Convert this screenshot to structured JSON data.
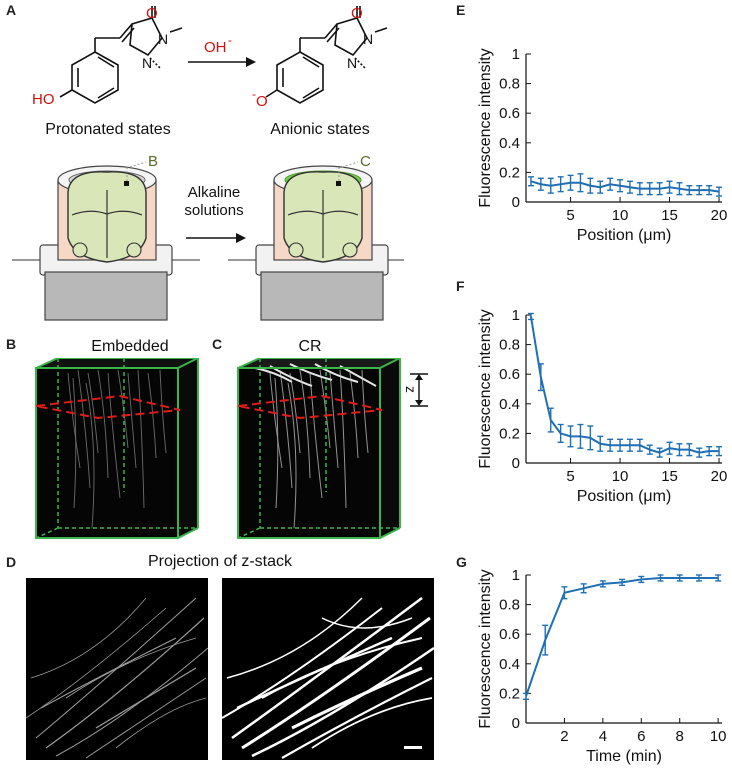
{
  "panels": {
    "A": "A",
    "B": "B",
    "C": "C",
    "D": "D",
    "E": "E",
    "F": "F",
    "G": "G"
  },
  "panel_a": {
    "oh_label": "OH",
    "oh_minus": "-",
    "ho_label": "HO",
    "o_minus_label": "O",
    "o_minus_sign": "-",
    "o_label": "O",
    "n_label": "N",
    "protonated": "Protonated states",
    "anionic": "Anionic states",
    "marker_b": "B",
    "marker_c": "C",
    "alkaline_line1": "Alkaline",
    "alkaline_line2": "solutions"
  },
  "panel_b": {
    "title": "Embedded"
  },
  "panel_c": {
    "title": "CR",
    "z_label": "z"
  },
  "panel_d": {
    "title": "Projection of z-stack"
  },
  "chart_data": [
    {
      "id": "E",
      "type": "line",
      "xlabel": "Position (μm)",
      "ylabel": "Fluorescence intensity",
      "xlim": [
        0.5,
        20.3
      ],
      "ylim": [
        0,
        1
      ],
      "xticks": [
        5,
        10,
        15,
        20
      ],
      "yticks": [
        0,
        0.2,
        0.4,
        0.6,
        0.8,
        1
      ],
      "ytick_labels": [
        "0",
        "0.2",
        "0.4",
        "0.6",
        "0.8",
        "1"
      ],
      "color": "#1f6fb5",
      "x": [
        1,
        2,
        3,
        4,
        5,
        6,
        7,
        8,
        9,
        10,
        11,
        12,
        13,
        14,
        15,
        16,
        17,
        18,
        19,
        20
      ],
      "y": [
        0.14,
        0.12,
        0.11,
        0.12,
        0.13,
        0.13,
        0.11,
        0.1,
        0.12,
        0.11,
        0.1,
        0.09,
        0.09,
        0.09,
        0.1,
        0.09,
        0.08,
        0.08,
        0.08,
        0.07
      ],
      "err": [
        0.03,
        0.04,
        0.05,
        0.05,
        0.05,
        0.06,
        0.05,
        0.04,
        0.04,
        0.04,
        0.04,
        0.04,
        0.04,
        0.04,
        0.04,
        0.04,
        0.03,
        0.03,
        0.03,
        0.03
      ]
    },
    {
      "id": "F",
      "type": "line",
      "xlabel": "Position (μm)",
      "ylabel": "Fluorescence intensity",
      "xlim": [
        0.5,
        20.3
      ],
      "ylim": [
        0,
        1
      ],
      "xticks": [
        5,
        10,
        15,
        20
      ],
      "yticks": [
        0,
        0.2,
        0.4,
        0.6,
        0.8,
        1
      ],
      "ytick_labels": [
        "0",
        "0.2",
        "0.4",
        "0.6",
        "0.8",
        "1"
      ],
      "color": "#1f6fb5",
      "x": [
        1,
        2,
        3,
        4,
        5,
        6,
        7,
        8,
        9,
        10,
        11,
        12,
        13,
        14,
        15,
        16,
        17,
        18,
        19,
        20
      ],
      "y": [
        0.99,
        0.58,
        0.29,
        0.2,
        0.18,
        0.18,
        0.17,
        0.13,
        0.12,
        0.12,
        0.12,
        0.12,
        0.09,
        0.07,
        0.1,
        0.09,
        0.09,
        0.07,
        0.08,
        0.08
      ],
      "err": [
        0.02,
        0.09,
        0.08,
        0.06,
        0.07,
        0.08,
        0.08,
        0.05,
        0.04,
        0.04,
        0.04,
        0.04,
        0.03,
        0.03,
        0.04,
        0.04,
        0.04,
        0.03,
        0.03,
        0.03
      ]
    },
    {
      "id": "G",
      "type": "line",
      "xlabel": "Time (min)",
      "ylabel": "Fluorescence intensity",
      "xlim": [
        0,
        10.2
      ],
      "ylim": [
        0,
        1
      ],
      "xticks": [
        2,
        4,
        6,
        8,
        10
      ],
      "yticks": [
        0,
        0.2,
        0.4,
        0.6,
        0.8,
        1
      ],
      "ytick_labels": [
        "0",
        "0.2",
        "0.4",
        "0.6",
        "0.8",
        "1"
      ],
      "color": "#1f6fb5",
      "x": [
        0,
        1,
        2,
        3,
        4,
        5,
        6,
        7,
        8,
        9,
        10
      ],
      "y": [
        0.18,
        0.56,
        0.88,
        0.91,
        0.94,
        0.95,
        0.97,
        0.98,
        0.98,
        0.98,
        0.98
      ],
      "err": [
        0.02,
        0.1,
        0.04,
        0.03,
        0.02,
        0.02,
        0.02,
        0.02,
        0.02,
        0.02,
        0.02
      ]
    }
  ]
}
